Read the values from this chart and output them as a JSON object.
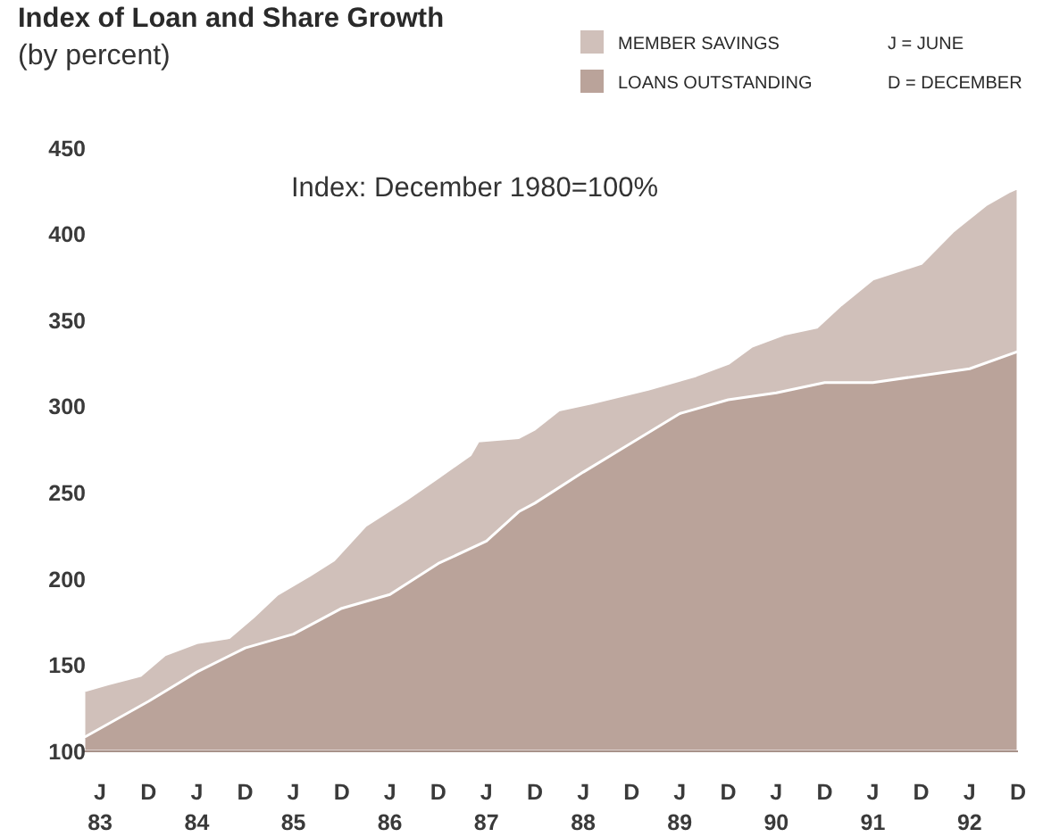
{
  "chart_data": {
    "type": "area",
    "title": "Index of Loan and Share Growth",
    "subtitle": "(by percent)",
    "annotations": [
      "Index: December 1980=100%",
      "J = JUNE",
      "D = DECEMBER"
    ],
    "xlim": [
      "1983-04",
      "1992-12"
    ],
    "xticks": [
      {
        "value": "1983-06",
        "label": "J\n83"
      },
      {
        "value": "1983-12",
        "label": "D"
      },
      {
        "value": "1984-06",
        "label": "J\n84"
      },
      {
        "value": "1984-12",
        "label": "D"
      },
      {
        "value": "1985-06",
        "label": "J\n85"
      },
      {
        "value": "1985-12",
        "label": "D"
      },
      {
        "value": "1986-06",
        "label": "J\n86"
      },
      {
        "value": "1986-12",
        "label": "D"
      },
      {
        "value": "1987-06",
        "label": "J\n87"
      },
      {
        "value": "1987-12",
        "label": "D"
      },
      {
        "value": "1988-06",
        "label": "J\n88"
      },
      {
        "value": "1988-12",
        "label": "D"
      },
      {
        "value": "1989-06",
        "label": "J\n89"
      },
      {
        "value": "1989-12",
        "label": "D"
      },
      {
        "value": "1990-06",
        "label": "J\n90"
      },
      {
        "value": "1990-12",
        "label": "D"
      },
      {
        "value": "1991-06",
        "label": "J\n91"
      },
      {
        "value": "1991-12",
        "label": "D"
      },
      {
        "value": "1992-06",
        "label": "J\n92"
      },
      {
        "value": "1992-12",
        "label": "D"
      }
    ],
    "ylim": [
      100,
      450
    ],
    "yticks": [
      100,
      150,
      200,
      250,
      300,
      350,
      400,
      450
    ],
    "legend": "top right",
    "series": [
      {
        "name": "MEMBER SAVINGS",
        "color": "#d0c0ba",
        "x": [
          "1983-04",
          "1983-07",
          "1983-11",
          "1984-02",
          "1984-06",
          "1984-10",
          "1985-01",
          "1985-04",
          "1985-08",
          "1985-11",
          "1986-03",
          "1986-08",
          "1986-12",
          "1987-04",
          "1987-05",
          "1987-10",
          "1987-12",
          "1988-03",
          "1988-07",
          "1989-02",
          "1989-08",
          "1989-12",
          "1990-03",
          "1990-07",
          "1990-11",
          "1991-02",
          "1991-06",
          "1991-12",
          "1992-04",
          "1992-08",
          "1992-11",
          "1992-12"
        ],
        "values": [
          135,
          139,
          144,
          156,
          163,
          166,
          178,
          191,
          202,
          211,
          231,
          246,
          259,
          272,
          280,
          282,
          287,
          298,
          302,
          310,
          318,
          325,
          335,
          342,
          346,
          359,
          374,
          383,
          402,
          417,
          425,
          427
        ]
      },
      {
        "name": "LOANS OUTSTANDING",
        "color": "#baa39a",
        "x": [
          "1983-04",
          "1983-12",
          "1984-06",
          "1984-12",
          "1985-06",
          "1985-12",
          "1986-06",
          "1986-12",
          "1987-06",
          "1987-10",
          "1987-12",
          "1988-06",
          "1988-12",
          "1989-06",
          "1989-12",
          "1990-06",
          "1990-12",
          "1991-06",
          "1991-12",
          "1992-06",
          "1992-12"
        ],
        "values": [
          108,
          129,
          146,
          160,
          168,
          183,
          191,
          209,
          222,
          239,
          244,
          262,
          279,
          296,
          304,
          308,
          314,
          314,
          318,
          322,
          332
        ]
      }
    ]
  }
}
